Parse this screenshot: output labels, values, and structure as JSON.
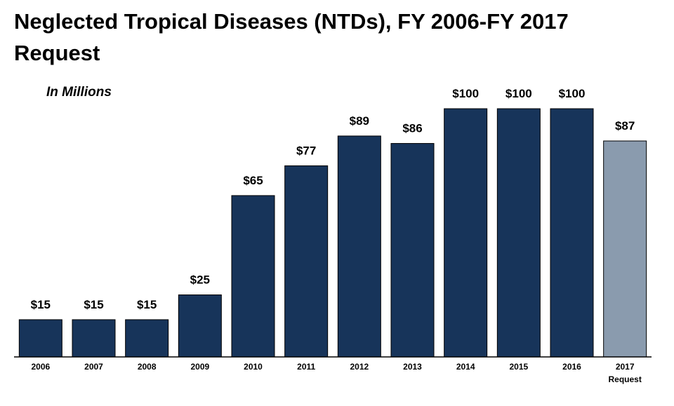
{
  "title": "Neglected Tropical Diseases (NTDs), FY 2006-FY 2017 Request",
  "subtitle": "In Millions",
  "colors": {
    "bar": "#17345a",
    "request_bar": "#8a9bae",
    "baseline": "#000000"
  },
  "chart_data": {
    "type": "bar",
    "title": "Neglected Tropical Diseases (NTDs), FY 2006-FY 2017 Request",
    "subtitle": "In Millions",
    "xlabel": "",
    "ylabel": "",
    "ylim": [
      0,
      100
    ],
    "grid": false,
    "categories": [
      "2006",
      "2007",
      "2008",
      "2009",
      "2010",
      "2011",
      "2012",
      "2013",
      "2014",
      "2015",
      "2016",
      "2017\nRequest"
    ],
    "values": [
      15,
      15,
      15,
      25,
      65,
      77,
      89,
      86,
      100,
      100,
      100,
      87
    ],
    "data_labels": [
      "$15",
      "$15",
      "$15",
      "$25",
      "$65",
      "$77",
      "$89",
      "$86",
      "$100",
      "$100",
      "$100",
      "$87"
    ],
    "highlight": [
      false,
      false,
      false,
      false,
      false,
      false,
      false,
      false,
      false,
      false,
      false,
      true
    ]
  }
}
